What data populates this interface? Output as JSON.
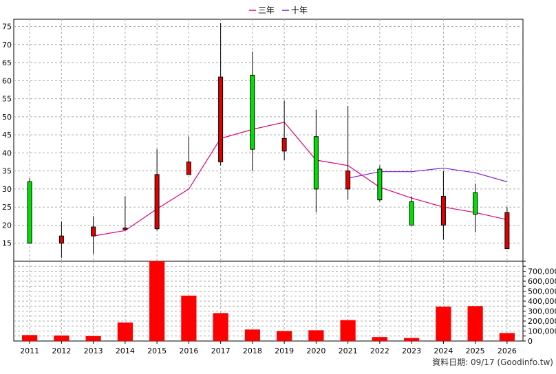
{
  "chart_data": {
    "type": "candlestick-with-volume",
    "legend": {
      "placement": "top-center",
      "items": [
        {
          "name": "三年",
          "color": "#e0007a"
        },
        {
          "name": "十年",
          "color": "#7a1fd1"
        }
      ]
    },
    "years": [
      "2011",
      "2012",
      "2013",
      "2014",
      "2015",
      "2016",
      "2017",
      "2018",
      "2019",
      "2020",
      "2021",
      "2022",
      "2023",
      "2024",
      "2025",
      "2026"
    ],
    "price_axis": {
      "ylim": [
        10,
        77
      ],
      "ticks": [
        15,
        20,
        25,
        30,
        35,
        40,
        45,
        50,
        55,
        60,
        65,
        70,
        75
      ]
    },
    "candles": [
      {
        "open": 15.0,
        "close": 32.0,
        "high": 33.0,
        "low": 15.0
      },
      {
        "open": 17.0,
        "close": 15.0,
        "high": 21.0,
        "low": 11.0
      },
      {
        "open": 19.5,
        "close": 17.0,
        "high": 22.5,
        "low": 12.0
      },
      {
        "open": 19.2,
        "close": 19.0,
        "high": 28.0,
        "low": 18.5
      },
      {
        "open": 34.0,
        "close": 19.0,
        "high": 41.0,
        "low": 18.5
      },
      {
        "open": 37.5,
        "close": 34.0,
        "high": 44.5,
        "low": 34.0
      },
      {
        "open": 61.0,
        "close": 37.5,
        "high": 76.0,
        "low": 36.5
      },
      {
        "open": 41.0,
        "close": 61.5,
        "high": 68.0,
        "low": 35.0
      },
      {
        "open": 44.0,
        "close": 40.5,
        "high": 54.5,
        "low": 38.0
      },
      {
        "open": 30.0,
        "close": 44.5,
        "high": 52.0,
        "low": 23.5
      },
      {
        "open": 35.0,
        "close": 30.0,
        "high": 53.0,
        "low": 27.0
      },
      {
        "open": 27.0,
        "close": 35.5,
        "high": 36.5,
        "low": 26.5
      },
      {
        "open": 20.0,
        "close": 26.5,
        "high": 28.0,
        "low": 20.0
      },
      {
        "open": 28.0,
        "close": 20.0,
        "high": 35.0,
        "low": 16.0
      },
      {
        "open": 23.0,
        "close": 29.0,
        "high": 31.5,
        "low": 18.0
      },
      {
        "open": 23.5,
        "close": 13.5,
        "high": 25.0,
        "low": 13.5
      }
    ],
    "series": [
      {
        "name": "三年",
        "values": [
          null,
          null,
          17.0,
          18.5,
          24.5,
          30.0,
          44.0,
          46.5,
          48.5,
          38.0,
          36.5,
          30.5,
          27.5,
          25.0,
          23.5,
          21.5
        ]
      },
      {
        "name": "十年",
        "values": [
          null,
          null,
          null,
          null,
          null,
          null,
          null,
          null,
          null,
          null,
          33.0,
          34.8,
          34.8,
          35.8,
          34.5,
          32.0
        ]
      }
    ],
    "volume_axis": {
      "ylim": [
        0,
        800000
      ],
      "ticks": [
        "0",
        "100,000",
        "200,000",
        "300,000",
        "400,000",
        "500,000",
        "600,000",
        "700,000"
      ]
    },
    "volume": [
      60000,
      55000,
      50000,
      185000,
      800000,
      455000,
      280000,
      115000,
      100000,
      108000,
      210000,
      40000,
      30000,
      345000,
      350000,
      80000
    ],
    "footer": "資料日期: 09/17  (Goodinfo.tw)"
  }
}
